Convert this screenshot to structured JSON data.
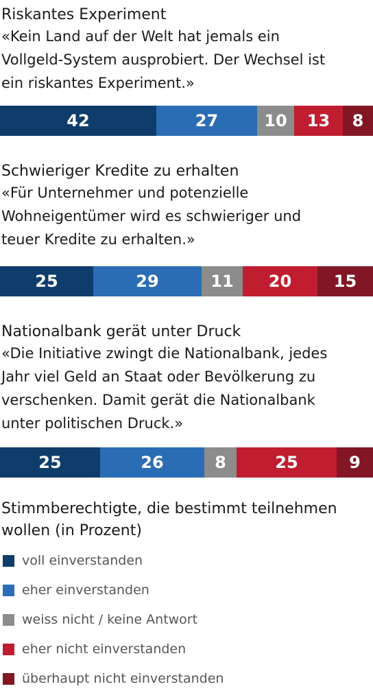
{
  "chart_data": {
    "type": "bar",
    "orientation": "stacked-horizontal",
    "xlim": [
      0,
      100
    ],
    "categories": [
      "Riskantes Experiment",
      "Schwieriger Kredite zu erhalten",
      "Nationalbank gerät unter Druck"
    ],
    "quotes": [
      [
        "«Kein Land auf der Welt hat jemals ein",
        "Vollgeld-System ausprobiert. Der Wechsel ist",
        "ein riskantes Experiment.»"
      ],
      [
        "«Für Unternehmer und potenzielle",
        "Wohneigentümer wird es schwieriger und",
        "teuer Kredite zu erhalten.»"
      ],
      [
        "«Die Initiative zwingt die Nationalbank, jedes",
        "Jahr viel Geld an Staat oder Bevölkerung zu",
        "verschenken. Damit gerät die Nationalbank",
        "unter politischen Druck.»"
      ]
    ],
    "series": [
      {
        "name": "voll einverstanden",
        "color": "#0f3d6b",
        "values": [
          42,
          25,
          25
        ]
      },
      {
        "name": "eher einverstanden",
        "color": "#2a6db5",
        "values": [
          27,
          29,
          26
        ]
      },
      {
        "name": "weiss nicht / keine Antwort",
        "color": "#8c8c8c",
        "values": [
          10,
          11,
          8
        ]
      },
      {
        "name": "eher nicht einverstanden",
        "color": "#c01e30",
        "values": [
          13,
          20,
          25
        ]
      },
      {
        "name": "überhaupt nicht einverstanden",
        "color": "#821625",
        "values": [
          8,
          15,
          9
        ]
      }
    ],
    "legend_title": [
      "Stimmberechtigte, die bestimmt teilnehmen",
      "wollen (in Prozent)"
    ],
    "legend_position": "bottom-left",
    "grid": false
  }
}
